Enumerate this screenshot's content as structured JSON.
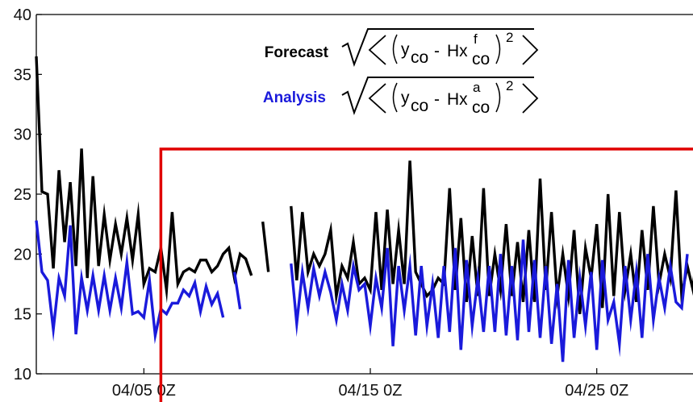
{
  "chart_data": {
    "type": "line",
    "title": "",
    "xlabel": "",
    "ylabel": "",
    "ylim": [
      10,
      40
    ],
    "xlim": [
      0,
      116
    ],
    "yticks": [
      "10",
      "15",
      "20",
      "25",
      "30",
      "35",
      "40"
    ],
    "xticks": [
      {
        "x": 19,
        "label": "04/05 0Z"
      },
      {
        "x": 59,
        "label": "04/15 0Z"
      },
      {
        "x": 99,
        "label": "04/25 0Z"
      }
    ],
    "grid": false,
    "legend_position": "top-center",
    "colors": {
      "forecast": "#000000",
      "analysis": "#1a1adb",
      "highlight": "#e00000"
    },
    "highlight_start_x": 22,
    "formula_text": {
      "y": "y",
      "co": "co",
      "minus": "-",
      "hx": "Hx",
      "f": "f",
      "a": "a",
      "sq": "2"
    },
    "series": [
      {
        "name": "Forecast",
        "color": "#000000",
        "values": [
          36.5,
          25.2,
          25.0,
          18.8,
          27.0,
          21.0,
          26.0,
          19.0,
          28.8,
          18.0,
          26.5,
          19.0,
          23.3,
          19.5,
          22.5,
          20.0,
          23.0,
          19.5,
          23.3,
          17.5,
          18.8,
          18.5,
          20.5,
          17.0,
          23.5,
          17.5,
          18.5,
          18.8,
          18.5,
          19.5,
          19.5,
          18.5,
          19.0,
          20.0,
          20.5,
          18.0,
          20.0,
          19.6,
          18.2,
          null,
          22.7,
          18.5,
          null,
          null,
          null,
          24.0,
          17.8,
          23.5,
          18.5,
          20.0,
          19.0,
          20.0,
          22.0,
          16.5,
          19.0,
          18.0,
          21.0,
          17.5,
          18.0,
          17.0,
          23.5,
          17.0,
          23.7,
          17.5,
          22.0,
          17.5,
          27.8,
          18.5,
          17.5,
          16.5,
          17.0,
          18.0,
          17.5,
          25.5,
          17.0,
          23.0,
          16.0,
          21.5,
          16.5,
          25.5,
          16.5,
          20.0,
          17.0,
          22.5,
          16.5,
          21.0,
          16.0,
          22.0,
          16.0,
          26.3,
          17.0,
          23.5,
          16.5,
          20.0,
          16.5,
          22.0,
          15.0,
          20.5,
          18.0,
          22.5,
          15.5,
          25.0,
          16.5,
          23.5,
          17.0,
          20.0,
          16.0,
          22.0,
          17.0,
          24.0,
          17.5,
          20.0,
          18.0,
          25.3,
          16.5,
          19.0,
          17.0,
          22.0
        ]
      },
      {
        "name": "Analysis",
        "color": "#1a1adb",
        "values": [
          22.8,
          18.5,
          17.8,
          13.7,
          18.0,
          16.5,
          22.4,
          13.3,
          18.0,
          15.3,
          18.2,
          15.3,
          18.2,
          15.3,
          18.0,
          15.5,
          19.3,
          15.0,
          15.2,
          14.7,
          17.8,
          13.2,
          15.4,
          15.0,
          15.9,
          15.9,
          17.0,
          16.5,
          17.6,
          15.2,
          17.3,
          15.8,
          16.7,
          14.7,
          null,
          18.5,
          15.4,
          null,
          null,
          null,
          null,
          null,
          null,
          null,
          null,
          19.2,
          14.2,
          18.5,
          15.5,
          18.8,
          16.5,
          18.5,
          16.8,
          14.5,
          17.5,
          15.3,
          19.0,
          17.0,
          17.5,
          14.0,
          18.0,
          15.5,
          20.5,
          12.3,
          19.0,
          15.3,
          19.0,
          13.2,
          19.0,
          14.0,
          17.5,
          13.0,
          19.0,
          13.5,
          20.5,
          12.0,
          19.5,
          14.0,
          18.0,
          13.5,
          19.0,
          13.5,
          20.0,
          13.2,
          19.0,
          12.8,
          21.2,
          13.5,
          19.5,
          13.0,
          19.0,
          12.5,
          17.5,
          11.0,
          19.5,
          13.0,
          18.0,
          14.0,
          18.5,
          12.0,
          19.5,
          14.5,
          16.0,
          12.5,
          19.0,
          14.5,
          18.5,
          13.0,
          20.0,
          14.5,
          18.0,
          15.5,
          19.0,
          16.0,
          15.5,
          20.0
        ]
      }
    ]
  }
}
